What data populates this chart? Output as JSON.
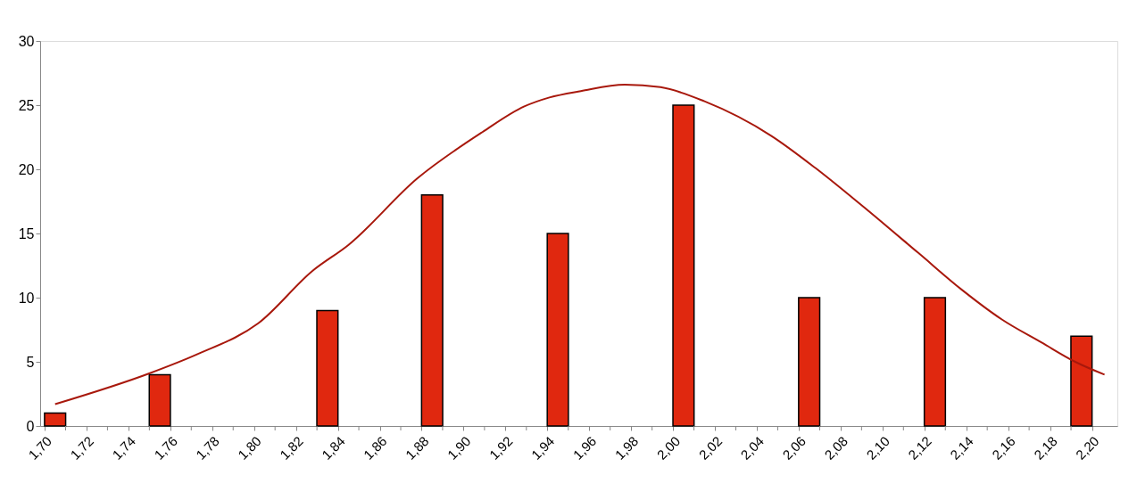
{
  "chart_data": {
    "type": "bar",
    "x": [
      1.705,
      1.755,
      1.835,
      1.885,
      1.945,
      2.005,
      2.065,
      2.125,
      2.195
    ],
    "series": [
      {
        "color": "#e0280f",
        "values": [
          1,
          4,
          9,
          18,
          15,
          25,
          10,
          10,
          7
        ]
      },
      {
        "type": "line",
        "color": "#a8180c",
        "x": [
          1.705,
          1.75,
          1.773,
          1.802,
          1.828,
          1.845,
          1.878,
          1.909,
          1.929,
          1.941,
          1.956,
          1.977,
          1.994,
          2.015,
          2.047,
          2.068,
          2.09,
          2.117,
          2.138,
          2.157,
          2.176,
          2.192,
          2.206
        ],
        "values": [
          1.7,
          4.1,
          5.6,
          8.0,
          12.1,
          14.1,
          19.3,
          22.9,
          24.9,
          25.6,
          26.1,
          26.6,
          26.4,
          25.3,
          22.6,
          20.1,
          17.2,
          13.5,
          10.6,
          8.3,
          6.5,
          5.0,
          4.0
        ]
      }
    ],
    "xlim": [
      1.7,
      2.21
    ],
    "xticks": [
      {
        "value": 1.7,
        "label": "1,70"
      },
      {
        "value": 1.71,
        "label": null
      },
      {
        "value": 1.72,
        "label": "1,72"
      },
      {
        "value": 1.73,
        "label": null
      },
      {
        "value": 1.74,
        "label": "1,74"
      },
      {
        "value": 1.75,
        "label": null
      },
      {
        "value": 1.76,
        "label": "1,76"
      },
      {
        "value": 1.77,
        "label": null
      },
      {
        "value": 1.78,
        "label": "1,78"
      },
      {
        "value": 1.79,
        "label": null
      },
      {
        "value": 1.8,
        "label": "1,80"
      },
      {
        "value": 1.81,
        "label": null
      },
      {
        "value": 1.82,
        "label": "1,82"
      },
      {
        "value": 1.83,
        "label": null
      },
      {
        "value": 1.84,
        "label": "1,84"
      },
      {
        "value": 1.85,
        "label": null
      },
      {
        "value": 1.86,
        "label": "1,86"
      },
      {
        "value": 1.87,
        "label": null
      },
      {
        "value": 1.88,
        "label": "1,88"
      },
      {
        "value": 1.89,
        "label": null
      },
      {
        "value": 1.9,
        "label": "1,90"
      },
      {
        "value": 1.91,
        "label": null
      },
      {
        "value": 1.92,
        "label": "1,92"
      },
      {
        "value": 1.93,
        "label": null
      },
      {
        "value": 1.94,
        "label": "1,94"
      },
      {
        "value": 1.95,
        "label": null
      },
      {
        "value": 1.96,
        "label": "1,96"
      },
      {
        "value": 1.97,
        "label": null
      },
      {
        "value": 1.98,
        "label": "1,98"
      },
      {
        "value": 1.99,
        "label": null
      },
      {
        "value": 2.0,
        "label": "2,00"
      },
      {
        "value": 2.01,
        "label": null
      },
      {
        "value": 2.02,
        "label": "2,02"
      },
      {
        "value": 2.03,
        "label": null
      },
      {
        "value": 2.04,
        "label": "2,04"
      },
      {
        "value": 2.05,
        "label": null
      },
      {
        "value": 2.06,
        "label": "2,06"
      },
      {
        "value": 2.07,
        "label": null
      },
      {
        "value": 2.08,
        "label": "2,08"
      },
      {
        "value": 2.09,
        "label": null
      },
      {
        "value": 2.1,
        "label": "2,10"
      },
      {
        "value": 2.11,
        "label": null
      },
      {
        "value": 2.12,
        "label": "2,12"
      },
      {
        "value": 2.13,
        "label": null
      },
      {
        "value": 2.14,
        "label": "2,14"
      },
      {
        "value": 2.15,
        "label": null
      },
      {
        "value": 2.16,
        "label": "2,16"
      },
      {
        "value": 2.17,
        "label": null
      },
      {
        "value": 2.18,
        "label": "2,18"
      },
      {
        "value": 2.19,
        "label": null
      },
      {
        "value": 2.2,
        "label": "2,20"
      }
    ],
    "ylim": [
      0,
      30
    ],
    "yticks": [
      0,
      5,
      10,
      15,
      20,
      25,
      30
    ],
    "grid": false
  }
}
